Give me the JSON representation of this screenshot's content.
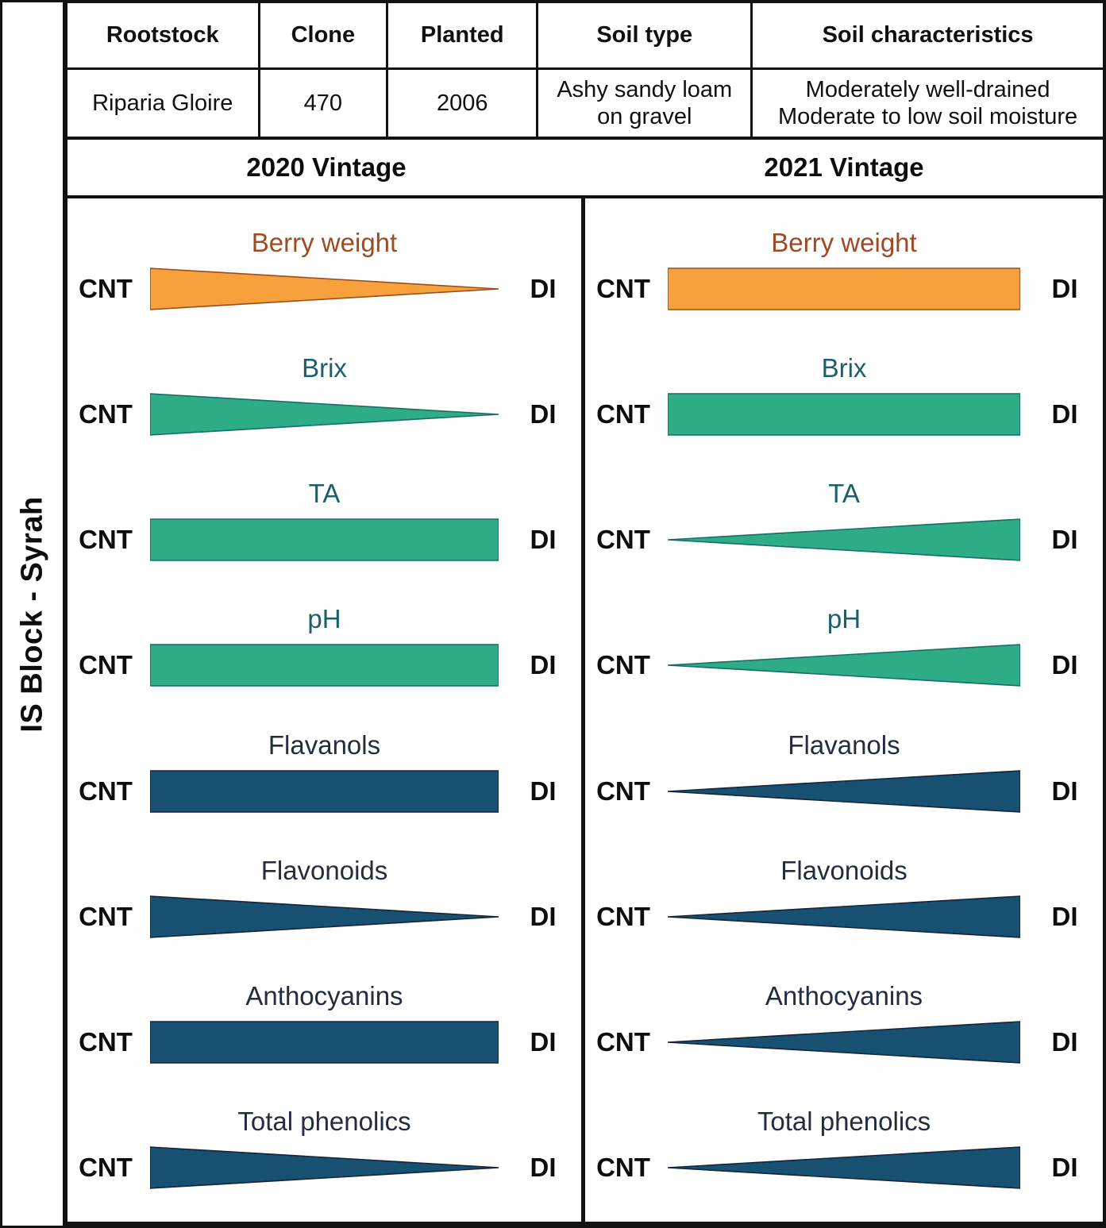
{
  "left_label": "IS Block - Syrah",
  "info_table": {
    "headers": [
      "Rootstock",
      "Clone",
      "Planted",
      "Soil type",
      "Soil characteristics"
    ],
    "row": [
      "Riparia Gloire",
      "470",
      "2006",
      "Ashy sandy loam on gravel",
      "Moderately well-drained\nModerate to low soil moisture"
    ]
  },
  "endpoints": {
    "left": "CNT",
    "right": "DI"
  },
  "colors": {
    "orange": {
      "fill": "#F6A13B",
      "stroke": "#9A4D1B"
    },
    "green": {
      "fill": "#2EAC88",
      "stroke": "#176E64"
    },
    "blue": {
      "fill": "#175070",
      "stroke": "#15263B"
    },
    "title_orange": "#9E4A22",
    "title_teal": "#1B5F6B",
    "title_navy": "#232D3F",
    "line_black": "#121212"
  },
  "vintages": [
    {
      "title": "2020 Vintage",
      "metrics": [
        {
          "label": "Berry weight",
          "color": "orange",
          "title_color": "title_orange",
          "shape": "taper_right"
        },
        {
          "label": "Brix",
          "color": "green",
          "title_color": "title_teal",
          "shape": "taper_right"
        },
        {
          "label": "TA",
          "color": "green",
          "title_color": "title_teal",
          "shape": "rect"
        },
        {
          "label": "pH",
          "color": "green",
          "title_color": "title_teal",
          "shape": "rect"
        },
        {
          "label": "Flavanols",
          "color": "blue",
          "title_color": "title_navy",
          "shape": "rect"
        },
        {
          "label": "Flavonoids",
          "color": "blue",
          "title_color": "title_navy",
          "shape": "taper_right"
        },
        {
          "label": "Anthocyanins",
          "color": "blue",
          "title_color": "title_navy",
          "shape": "rect"
        },
        {
          "label": "Total phenolics",
          "color": "blue",
          "title_color": "title_navy",
          "shape": "taper_right"
        }
      ]
    },
    {
      "title": "2021 Vintage",
      "metrics": [
        {
          "label": "Berry weight",
          "color": "orange",
          "title_color": "title_orange",
          "shape": "rect"
        },
        {
          "label": "Brix",
          "color": "green",
          "title_color": "title_teal",
          "shape": "rect"
        },
        {
          "label": "TA",
          "color": "green",
          "title_color": "title_teal",
          "shape": "taper_left"
        },
        {
          "label": "pH",
          "color": "green",
          "title_color": "title_teal",
          "shape": "taper_left"
        },
        {
          "label": "Flavanols",
          "color": "blue",
          "title_color": "title_navy",
          "shape": "taper_left"
        },
        {
          "label": "Flavonoids",
          "color": "blue",
          "title_color": "title_navy",
          "shape": "taper_left"
        },
        {
          "label": "Anthocyanins",
          "color": "blue",
          "title_color": "title_navy",
          "shape": "taper_left"
        },
        {
          "label": "Total phenolics",
          "color": "blue",
          "title_color": "title_navy",
          "shape": "taper_left"
        }
      ]
    }
  ]
}
